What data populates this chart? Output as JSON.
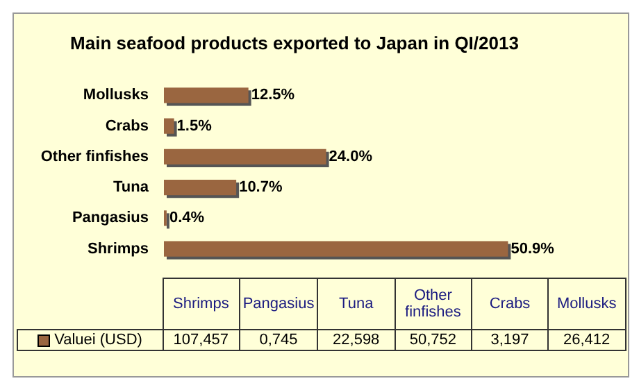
{
  "chart_data": {
    "type": "bar",
    "orientation": "horizontal",
    "title": "Main seafood products exported to Japan in QI/2013",
    "categories": [
      "Mollusks",
      "Crabs",
      "Other finfishes",
      "Tuna",
      "Pangasius",
      "Shrimps"
    ],
    "series": [
      {
        "name": "Valuei (USD)",
        "color": "#9a6640",
        "values": [
          12.5,
          1.5,
          24.0,
          10.7,
          0.4,
          50.9
        ],
        "value_labels": [
          "12.5%",
          "1.5%",
          "24.0%",
          "10.7%",
          "0.4%",
          "50.9%"
        ]
      }
    ],
    "annotations": [
      "26,412",
      "3,197",
      "50,752",
      "22,598",
      "0,745",
      "107,457"
    ],
    "legend": "bottom left"
  }
}
